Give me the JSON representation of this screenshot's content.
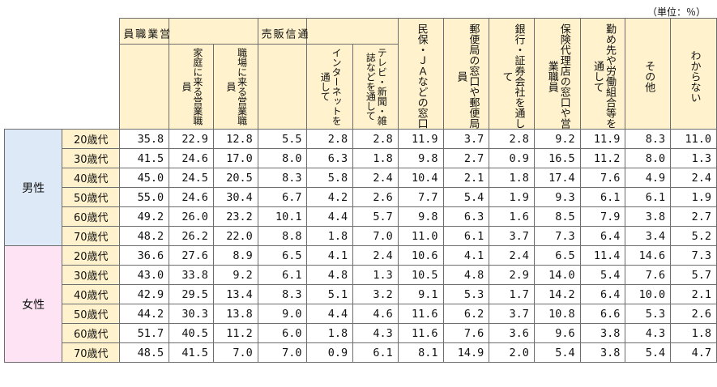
{
  "unit_label": "（単位：％）",
  "headers": {
    "sales_staff": "営業職員",
    "sales_home": "家庭に来る営業職員",
    "sales_work": "職場に来る営業職員",
    "mail_order": "通信販売",
    "internet": "インターネットを通して",
    "tv_mag": "テレビ・新聞・雑誌などを通して",
    "minpo": "民保・ＪＡなどの窓口",
    "post": "郵便局の窓口や郵便局員",
    "bank": "銀行・証券会社を通して",
    "agency": "保険代理店の窓口や営業職員",
    "employer": "勤め先や労働組合等を通して",
    "other": "その他",
    "unknown": "わからない"
  },
  "groups": [
    {
      "label": "男性",
      "rows": [
        {
          "age": "20歳代",
          "values": [
            "35.8",
            "22.9",
            "12.8",
            "5.5",
            "2.8",
            "2.8",
            "11.9",
            "3.7",
            "2.8",
            "9.2",
            "11.9",
            "8.3",
            "11.0"
          ]
        },
        {
          "age": "30歳代",
          "values": [
            "41.5",
            "24.6",
            "17.0",
            "8.0",
            "6.3",
            "1.8",
            "9.8",
            "2.7",
            "0.9",
            "16.5",
            "11.2",
            "8.0",
            "1.3"
          ]
        },
        {
          "age": "40歳代",
          "values": [
            "45.0",
            "24.5",
            "20.5",
            "8.3",
            "5.8",
            "2.4",
            "10.4",
            "2.1",
            "1.8",
            "17.4",
            "7.6",
            "4.9",
            "2.4"
          ]
        },
        {
          "age": "50歳代",
          "values": [
            "55.0",
            "24.6",
            "30.4",
            "6.7",
            "4.2",
            "2.6",
            "7.7",
            "5.4",
            "1.9",
            "9.3",
            "6.1",
            "6.1",
            "1.9"
          ]
        },
        {
          "age": "60歳代",
          "values": [
            "49.2",
            "26.0",
            "23.2",
            "10.1",
            "4.4",
            "5.7",
            "9.8",
            "6.3",
            "1.6",
            "8.5",
            "7.9",
            "3.8",
            "2.7"
          ]
        },
        {
          "age": "70歳代",
          "values": [
            "48.2",
            "26.2",
            "22.0",
            "8.8",
            "1.8",
            "7.0",
            "11.0",
            "6.1",
            "3.7",
            "7.3",
            "6.4",
            "3.4",
            "5.2"
          ]
        }
      ]
    },
    {
      "label": "女性",
      "rows": [
        {
          "age": "20歳代",
          "values": [
            "36.6",
            "27.6",
            "8.9",
            "6.5",
            "4.1",
            "2.4",
            "10.6",
            "4.1",
            "2.4",
            "6.5",
            "11.4",
            "14.6",
            "7.3"
          ]
        },
        {
          "age": "30歳代",
          "values": [
            "43.0",
            "33.8",
            "9.2",
            "6.1",
            "4.8",
            "1.3",
            "10.5",
            "4.8",
            "2.9",
            "14.0",
            "5.4",
            "7.6",
            "5.7"
          ]
        },
        {
          "age": "40歳代",
          "values": [
            "42.9",
            "29.5",
            "13.4",
            "8.3",
            "5.1",
            "3.2",
            "9.1",
            "5.3",
            "1.7",
            "14.2",
            "6.4",
            "10.0",
            "2.1"
          ]
        },
        {
          "age": "50歳代",
          "values": [
            "44.2",
            "30.3",
            "13.8",
            "9.0",
            "4.4",
            "4.6",
            "11.6",
            "6.2",
            "3.7",
            "10.8",
            "6.6",
            "5.3",
            "2.6"
          ]
        },
        {
          "age": "60歳代",
          "values": [
            "51.7",
            "40.5",
            "11.2",
            "6.0",
            "1.8",
            "4.3",
            "11.6",
            "7.6",
            "3.6",
            "9.6",
            "3.8",
            "4.3",
            "1.8"
          ]
        },
        {
          "age": "70歳代",
          "values": [
            "48.5",
            "41.5",
            "7.0",
            "7.0",
            "0.9",
            "6.1",
            "8.1",
            "14.9",
            "2.0",
            "5.4",
            "3.8",
            "5.4",
            "4.7"
          ]
        }
      ]
    }
  ]
}
